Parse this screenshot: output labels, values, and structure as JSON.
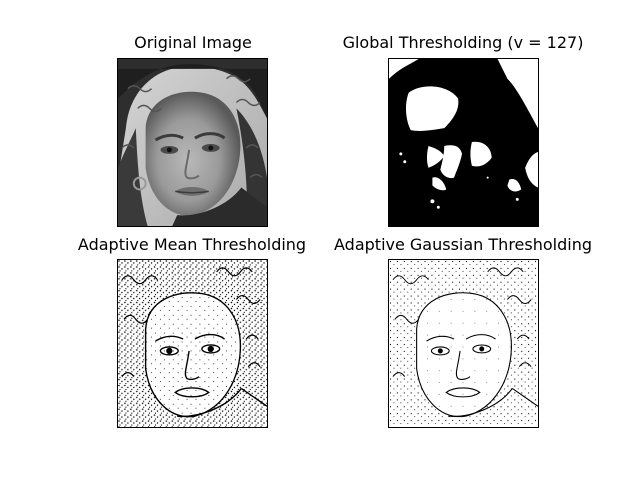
{
  "figure": {
    "panels": [
      {
        "title": "Original Image",
        "style": "grayscale-photo"
      },
      {
        "title": "Global Thresholding (v = 127)",
        "style": "binary-global"
      },
      {
        "title": "Adaptive Mean Thresholding",
        "style": "binary-adaptive-mean"
      },
      {
        "title": "Adaptive Gaussian Thresholding",
        "style": "binary-adaptive-gaussian"
      }
    ]
  }
}
